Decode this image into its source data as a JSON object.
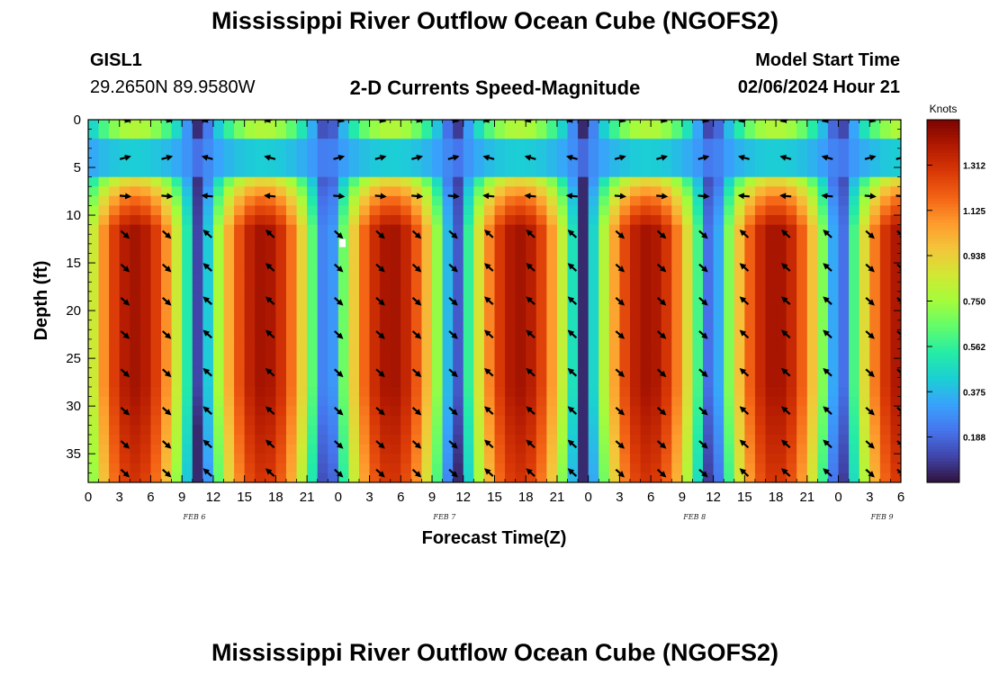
{
  "header": {
    "title": "Mississippi River Outflow Ocean Cube (NGOFS2)",
    "station_id": "GISL1",
    "station_coords": "29.2650N  89.9580W",
    "plot_name": "2-D Currents Speed-Magnitude",
    "model_start_label": "Model Start Time",
    "model_start_value": "02/06/2024 Hour 21"
  },
  "footer": {
    "title": "Mississippi River Outflow Ocean Cube (NGOFS2)"
  },
  "colors": {
    "colormap": [
      "#30123b",
      "#4145ab",
      "#4675ed",
      "#39a2fc",
      "#1bcfd4",
      "#24eca6",
      "#61fc6c",
      "#a4fc3b",
      "#d1e834",
      "#f3c63a",
      "#fe9b2d",
      "#f36315",
      "#d93806",
      "#b11901",
      "#7a0402"
    ]
  },
  "chart_data": {
    "type": "heatmap",
    "xlabel": "Forecast Time(Z)",
    "ylabel": "Depth (ft)",
    "colorbar_label": "Knots",
    "x_range_hours": [
      0,
      78
    ],
    "y_range_ft": [
      0,
      38
    ],
    "x_tick_labels": [
      "0",
      "3",
      "6",
      "9",
      "12",
      "15",
      "18",
      "21",
      "0",
      "3",
      "6",
      "9",
      "12",
      "15",
      "18",
      "21",
      "0",
      "3",
      "6",
      "9",
      "12",
      "15",
      "18",
      "21",
      "0",
      "3",
      "6"
    ],
    "x_tick_hours": [
      0,
      3,
      6,
      9,
      12,
      15,
      18,
      21,
      24,
      27,
      30,
      33,
      36,
      39,
      42,
      45,
      48,
      51,
      54,
      57,
      60,
      63,
      66,
      69,
      72,
      75,
      78
    ],
    "date_labels": [
      {
        "label": "FEB 6",
        "hour": 10.5
      },
      {
        "label": "FEB 7",
        "hour": 34.5
      },
      {
        "label": "FEB 8",
        "hour": 58.5
      },
      {
        "label": "FEB 9",
        "hour": 76.5
      }
    ],
    "y_ticks": [
      0,
      5,
      10,
      15,
      20,
      25,
      30,
      35
    ],
    "colorbar_range": [
      0,
      1.5
    ],
    "colorbar_ticks": [
      "0.188",
      "0.375",
      "0.562",
      "0.750",
      "0.938",
      "1.125",
      "1.312"
    ],
    "colorbar_tick_values": [
      0.188,
      0.375,
      0.562,
      0.75,
      0.938,
      1.125,
      1.312
    ],
    "vector_times_hours": [
      3.5,
      7.5,
      11.5,
      17.5,
      24,
      28,
      31.5,
      35,
      38.5,
      42.5,
      46.5,
      51,
      55,
      59,
      63,
      67,
      71,
      75,
      78
    ],
    "vector_depths_ft": [
      0,
      4,
      8,
      12,
      15.5,
      19,
      22.5,
      26.5,
      30.5,
      34,
      37
    ]
  }
}
